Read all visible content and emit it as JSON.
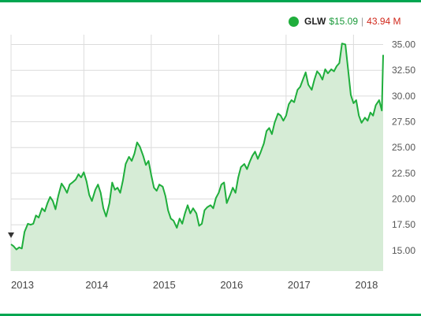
{
  "legend": {
    "ticker": "GLW",
    "price": "$15.09",
    "separator": "|",
    "change": "43.94 M"
  },
  "colors": {
    "accent": "#00a651",
    "line": "#1fae3c",
    "area": "#d6ecd6",
    "grid": "#dcdcdc",
    "change": "#d0281b"
  },
  "chart_data": {
    "type": "area",
    "title": "",
    "xlabel": "",
    "ylabel": "",
    "ylim": [
      13.0,
      35.5
    ],
    "grid": true,
    "legend_position": "top-right",
    "x_tick_labels": [
      "2013",
      "2014",
      "2015",
      "2016",
      "2017",
      "2018"
    ],
    "y_tick_labels": [
      "35.00",
      "32.50",
      "30.00",
      "27.50",
      "25.00",
      "22.50",
      "20.00",
      "17.50",
      "15.00"
    ],
    "y_tick_values": [
      35,
      32.5,
      30,
      27.5,
      25,
      22.5,
      20,
      17.5,
      15
    ],
    "series": [
      {
        "x": [
          2012.92,
          2012.96,
          2013.0,
          2013.04,
          2013.08,
          2013.12,
          2013.17,
          2013.21,
          2013.25,
          2013.29,
          2013.33,
          2013.38,
          2013.42,
          2013.46,
          2013.5,
          2013.54,
          2013.58,
          2013.62,
          2013.67,
          2013.71,
          2013.75,
          2013.79,
          2013.83,
          2013.88,
          2013.92,
          2013.96,
          2014.0,
          2014.04,
          2014.08,
          2014.12,
          2014.17,
          2014.21,
          2014.25,
          2014.29,
          2014.33,
          2014.38,
          2014.42,
          2014.46,
          2014.5,
          2014.54,
          2014.58,
          2014.62,
          2014.67,
          2014.71,
          2014.75,
          2014.79,
          2014.83,
          2014.88,
          2014.92,
          2014.96,
          2015.0,
          2015.04,
          2015.08,
          2015.12,
          2015.17,
          2015.21,
          2015.25,
          2015.29,
          2015.33,
          2015.38,
          2015.42,
          2015.46,
          2015.5,
          2015.54,
          2015.58,
          2015.62,
          2015.67,
          2015.71,
          2015.75,
          2015.79,
          2015.83,
          2015.88,
          2015.92,
          2015.96,
          2016.0,
          2016.04,
          2016.08,
          2016.12,
          2016.17,
          2016.21,
          2016.25,
          2016.29,
          2016.33,
          2016.38,
          2016.42,
          2016.46,
          2016.5,
          2016.54,
          2016.58,
          2016.62,
          2016.67,
          2016.71,
          2016.75,
          2016.79,
          2016.83,
          2016.88,
          2016.92,
          2016.96,
          2017.0,
          2017.04,
          2017.08,
          2017.12,
          2017.17,
          2017.21,
          2017.25,
          2017.29,
          2017.33,
          2017.38,
          2017.42,
          2017.46,
          2017.5,
          2017.54,
          2017.58,
          2017.62,
          2017.67,
          2017.71,
          2017.75,
          2017.79,
          2017.83,
          2017.88,
          2017.92,
          2017.96,
          2018.0,
          2018.04,
          2018.08,
          2018.12,
          2018.17,
          2018.21,
          2018.25,
          2018.29,
          2018.33,
          2018.38,
          2018.42,
          2018.44
        ],
        "y": [
          15.6,
          15.4,
          15.1,
          15.3,
          15.2,
          16.8,
          17.6,
          17.5,
          17.6,
          18.4,
          18.2,
          19.1,
          18.8,
          19.6,
          20.2,
          19.8,
          19.0,
          20.3,
          21.5,
          21.1,
          20.6,
          21.4,
          21.6,
          21.9,
          22.4,
          22.1,
          22.6,
          21.7,
          20.4,
          19.8,
          20.9,
          21.4,
          20.6,
          19.1,
          18.3,
          19.6,
          21.6,
          20.9,
          21.1,
          20.6,
          21.8,
          23.4,
          24.1,
          23.7,
          24.4,
          25.5,
          25.1,
          24.2,
          23.3,
          23.7,
          22.3,
          21.1,
          20.8,
          21.4,
          21.2,
          20.3,
          18.9,
          18.1,
          17.9,
          17.2,
          18.1,
          17.6,
          18.6,
          19.4,
          18.6,
          19.1,
          18.6,
          17.4,
          17.6,
          18.9,
          19.2,
          19.4,
          19.1,
          20.1,
          20.6,
          21.4,
          21.6,
          19.6,
          20.4,
          21.1,
          20.6,
          22.1,
          23.1,
          23.4,
          22.9,
          23.6,
          24.2,
          24.6,
          23.9,
          24.5,
          25.4,
          26.6,
          26.9,
          26.3,
          27.4,
          28.3,
          28.1,
          27.6,
          28.1,
          29.2,
          29.6,
          29.4,
          30.6,
          30.9,
          31.6,
          32.3,
          31.1,
          30.6,
          31.6,
          32.4,
          32.1,
          31.6,
          32.6,
          32.2,
          32.6,
          32.4,
          32.9,
          33.2,
          35.1,
          35.0,
          32.6,
          30.1,
          29.3,
          29.6,
          28.1,
          27.4,
          27.9,
          27.6,
          28.4,
          28.1,
          29.1,
          29.6,
          28.6,
          34.0
        ]
      }
    ]
  }
}
